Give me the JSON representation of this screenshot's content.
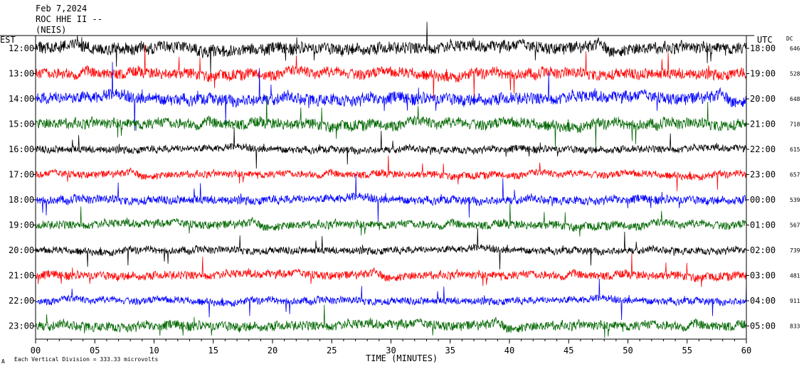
{
  "chart_data": {
    "type": "line",
    "title": "Feb 7,2024",
    "subtitle_lines": [
      "ROC HHE II --",
      "(NEIS)"
    ],
    "left_axis_title": "EST",
    "right_axis_title": "UTC",
    "dc_header": "DC",
    "xlabel": "TIME (MINUTES)",
    "xlim": [
      0,
      60
    ],
    "x_ticks": [
      "00",
      "05",
      "10",
      "15",
      "20",
      "25",
      "30",
      "35",
      "40",
      "45",
      "50",
      "55",
      "60"
    ],
    "scale_note": "Each Vertical Division =  333.33 microvolts",
    "footer_mark": "A",
    "colors": [
      "#000000",
      "#ff0000",
      "#0000ff",
      "#006600"
    ],
    "rows": [
      {
        "est": "12:00",
        "utc": "18:00",
        "dc": "646",
        "color": "#000000",
        "amplitude": 1.0
      },
      {
        "est": "13:00",
        "utc": "19:00",
        "dc": "528",
        "color": "#ff0000",
        "amplitude": 0.9
      },
      {
        "est": "14:00",
        "utc": "20:00",
        "dc": "648",
        "color": "#0000ff",
        "amplitude": 1.0
      },
      {
        "est": "15:00",
        "utc": "21:00",
        "dc": "718",
        "color": "#006600",
        "amplitude": 0.9
      },
      {
        "est": "16:00",
        "utc": "22:00",
        "dc": "615",
        "color": "#000000",
        "amplitude": 0.6
      },
      {
        "est": "17:00",
        "utc": "23:00",
        "dc": "657",
        "color": "#ff0000",
        "amplitude": 0.6
      },
      {
        "est": "18:00",
        "utc": "00:00",
        "dc": "539",
        "color": "#0000ff",
        "amplitude": 0.7
      },
      {
        "est": "19:00",
        "utc": "01:00",
        "dc": "567",
        "color": "#006600",
        "amplitude": 0.7
      },
      {
        "est": "20:00",
        "utc": "02:00",
        "dc": "739",
        "color": "#000000",
        "amplitude": 0.6
      },
      {
        "est": "21:00",
        "utc": "03:00",
        "dc": "481",
        "color": "#ff0000",
        "amplitude": 0.7
      },
      {
        "est": "22:00",
        "utc": "04:00",
        "dc": "911",
        "color": "#0000ff",
        "amplitude": 0.6
      },
      {
        "est": "23:00",
        "utc": "05:00",
        "dc": "833",
        "color": "#006600",
        "amplitude": 0.8
      }
    ]
  }
}
